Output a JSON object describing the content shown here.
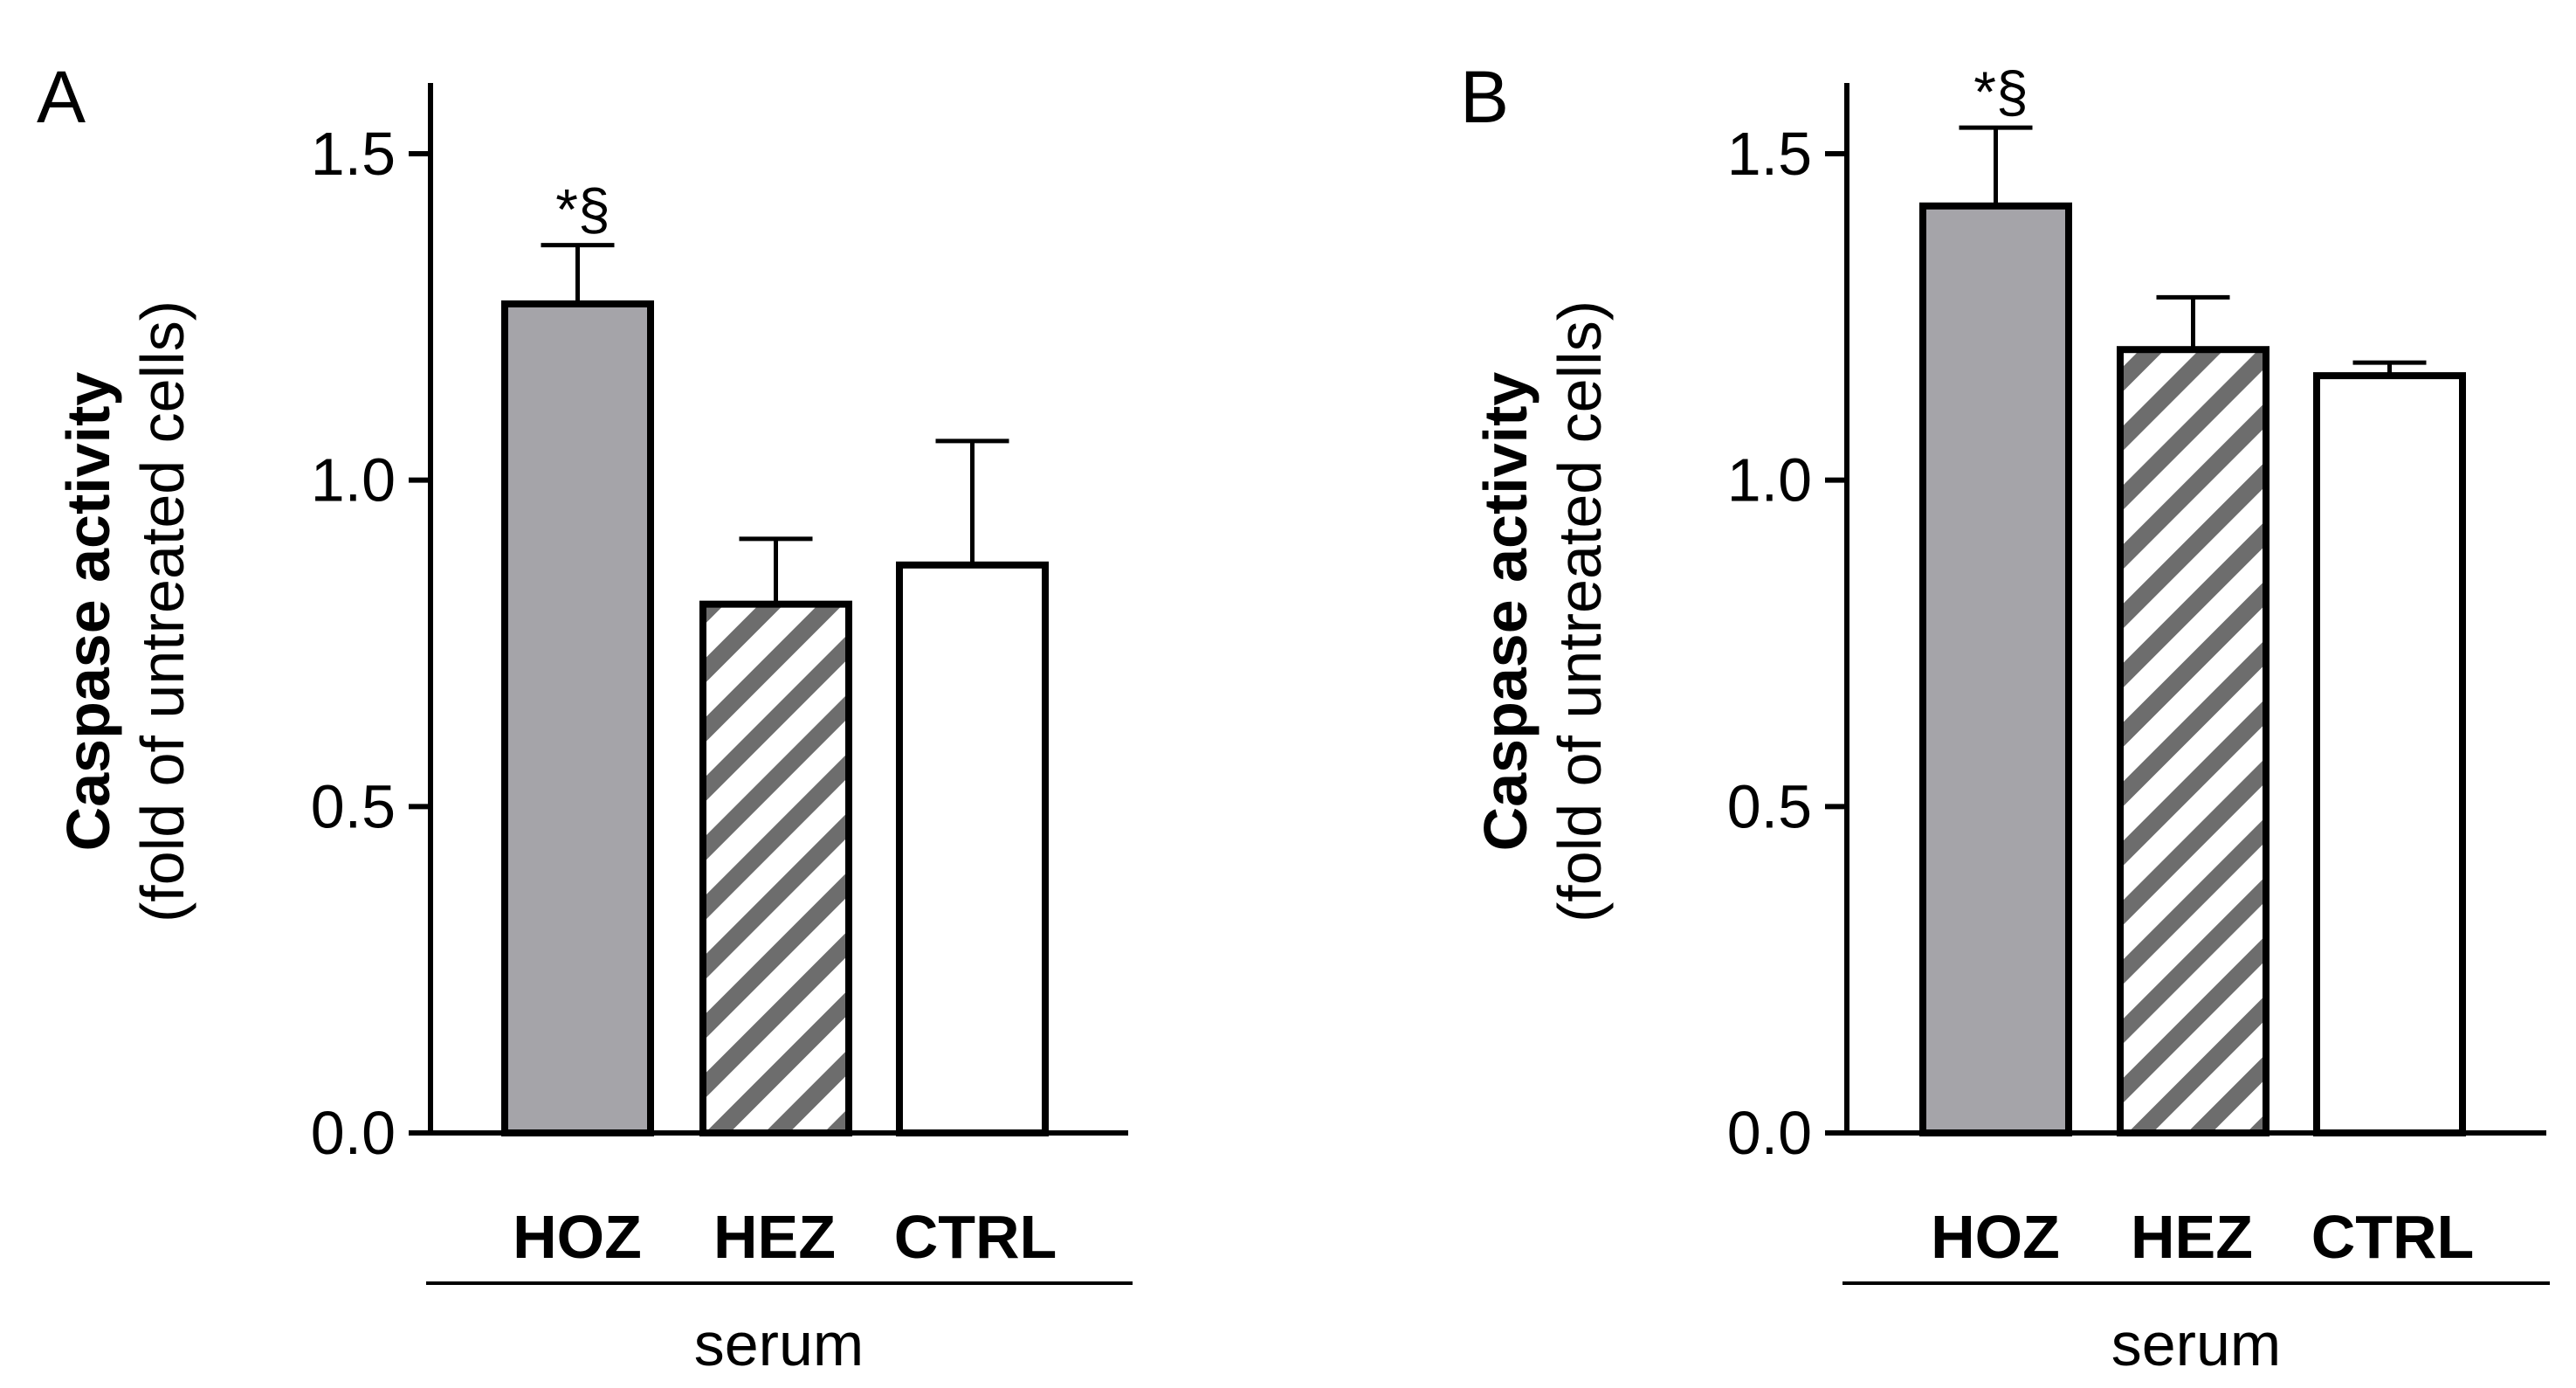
{
  "chart_data": [
    {
      "panel": "A",
      "type": "bar",
      "ylabel": "Caspase activity",
      "ylabel_sub": "(fold of untreated cells)",
      "xlabel": "serum",
      "categories": [
        "HOZ",
        "HEZ",
        "CTRL"
      ],
      "values": [
        1.27,
        0.81,
        0.87
      ],
      "errors": [
        0.09,
        0.1,
        0.19
      ],
      "fills": [
        "gray",
        "hatched",
        "white"
      ],
      "annotations": [
        "*§",
        "",
        ""
      ],
      "ylim": [
        0,
        1.6
      ],
      "yticks": [
        0.0,
        0.5,
        1.0,
        1.5
      ],
      "ytick_labels": [
        "0.0",
        "0.5",
        "1.0",
        "1.5"
      ],
      "grid": false
    },
    {
      "panel": "B",
      "type": "bar",
      "ylabel": "Caspase activity",
      "ylabel_sub": "(fold of untreated cells)",
      "xlabel": "serum",
      "categories": [
        "HOZ",
        "HEZ",
        "CTRL"
      ],
      "values": [
        1.42,
        1.2,
        1.16
      ],
      "errors": [
        0.12,
        0.08,
        0.02
      ],
      "fills": [
        "gray",
        "hatched",
        "white"
      ],
      "annotations": [
        "*§",
        "",
        ""
      ],
      "ylim": [
        0,
        1.6
      ],
      "yticks": [
        0.0,
        0.5,
        1.0,
        1.5
      ],
      "ytick_labels": [
        "0.0",
        "0.5",
        "1.0",
        "1.5"
      ],
      "grid": false
    }
  ],
  "colors": {
    "bar_gray": "#a5a4a9",
    "hatch": "#6d6d6d",
    "axis": "#000000"
  }
}
